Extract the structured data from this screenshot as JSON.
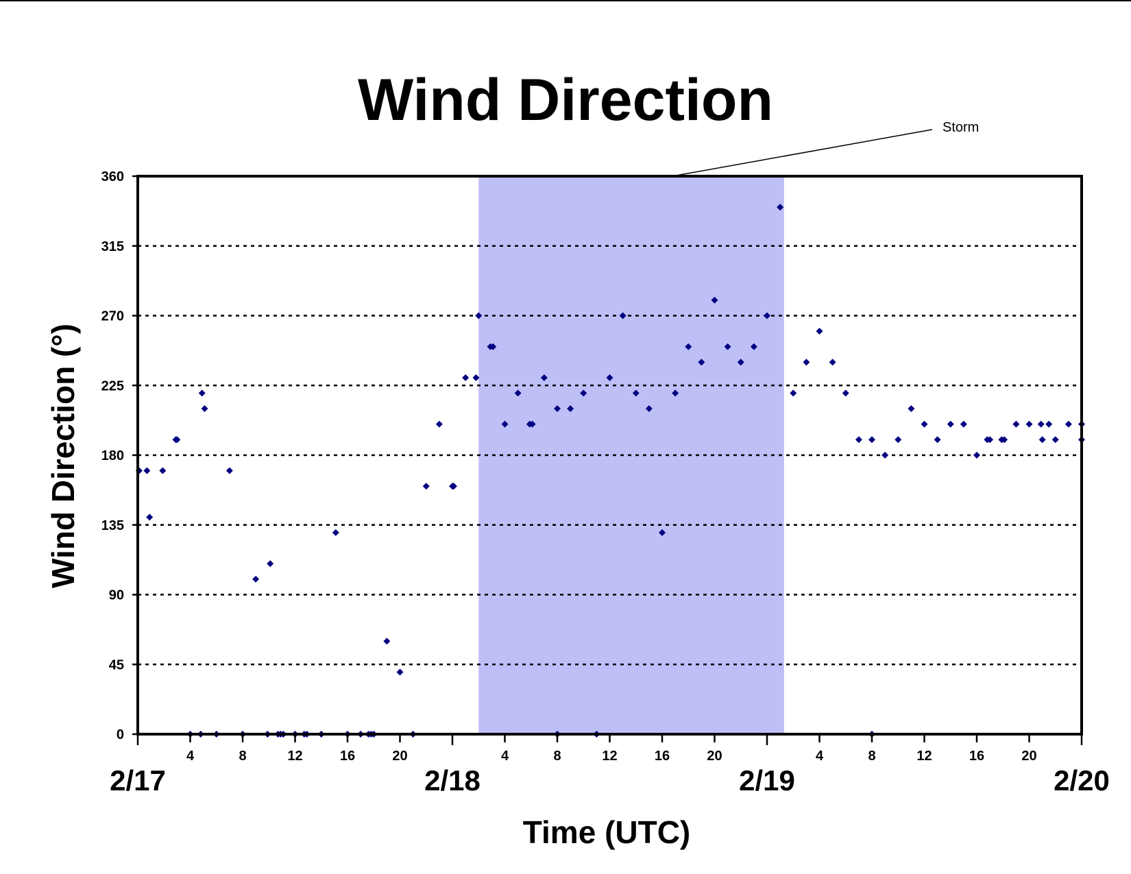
{
  "chart_data": {
    "type": "scatter",
    "title": "Wind Direction",
    "xlabel": "Time (UTC)",
    "ylabel": "Wind Direction (°)",
    "ylim": [
      0,
      360
    ],
    "yticks": [
      0,
      45,
      90,
      135,
      180,
      225,
      270,
      315,
      360
    ],
    "grid": "horizontal dotted",
    "x_units": "hours since 2/17 00:00 UTC",
    "xlim": [
      0,
      72
    ],
    "hour_ticks": [
      {
        "x": 4,
        "label": "4"
      },
      {
        "x": 8,
        "label": "8"
      },
      {
        "x": 12,
        "label": "12"
      },
      {
        "x": 16,
        "label": "16"
      },
      {
        "x": 20,
        "label": "20"
      },
      {
        "x": 28,
        "label": "4"
      },
      {
        "x": 32,
        "label": "8"
      },
      {
        "x": 36,
        "label": "12"
      },
      {
        "x": 40,
        "label": "16"
      },
      {
        "x": 44,
        "label": "20"
      },
      {
        "x": 52,
        "label": "4"
      },
      {
        "x": 56,
        "label": "8"
      },
      {
        "x": 60,
        "label": "12"
      },
      {
        "x": 64,
        "label": "16"
      },
      {
        "x": 68,
        "label": "20"
      }
    ],
    "date_labels": [
      {
        "x": 0,
        "label": "2/17"
      },
      {
        "x": 24,
        "label": "2/18"
      },
      {
        "x": 48,
        "label": "2/19"
      },
      {
        "x": 72,
        "label": "2/20"
      }
    ],
    "shaded_region": {
      "x_start": 26,
      "x_end": 49.3,
      "label": "Storm",
      "color": "#bfbff8"
    },
    "marker_color": "#000080",
    "points": [
      [
        0.1,
        170
      ],
      [
        0.7,
        170
      ],
      [
        0.9,
        140
      ],
      [
        1.9,
        170
      ],
      [
        2.9,
        190
      ],
      [
        3.0,
        190
      ],
      [
        4.0,
        0
      ],
      [
        4.8,
        0
      ],
      [
        4.9,
        220
      ],
      [
        5.1,
        210
      ],
      [
        6.0,
        0
      ],
      [
        7.0,
        170
      ],
      [
        8.0,
        0
      ],
      [
        9.0,
        100
      ],
      [
        9.9,
        0
      ],
      [
        10.1,
        110
      ],
      [
        10.7,
        0
      ],
      [
        10.9,
        0
      ],
      [
        11.1,
        0
      ],
      [
        12.0,
        0
      ],
      [
        12.7,
        0
      ],
      [
        12.9,
        0
      ],
      [
        14.0,
        0
      ],
      [
        15.1,
        130
      ],
      [
        16.0,
        0
      ],
      [
        17.0,
        0
      ],
      [
        17.6,
        0
      ],
      [
        17.8,
        0
      ],
      [
        18.0,
        0
      ],
      [
        19.0,
        60
      ],
      [
        20.0,
        40
      ],
      [
        21.0,
        0
      ],
      [
        22.0,
        160
      ],
      [
        23.0,
        200
      ],
      [
        24.0,
        160
      ],
      [
        24.1,
        160
      ],
      [
        25.0,
        230
      ],
      [
        25.8,
        230
      ],
      [
        26.0,
        270
      ],
      [
        26.9,
        250
      ],
      [
        27.1,
        250
      ],
      [
        28.0,
        200
      ],
      [
        29.0,
        220
      ],
      [
        29.9,
        200
      ],
      [
        30.1,
        200
      ],
      [
        31.0,
        230
      ],
      [
        32.0,
        210
      ],
      [
        32.0,
        0
      ],
      [
        33.0,
        210
      ],
      [
        34.0,
        220
      ],
      [
        35.0,
        0
      ],
      [
        36.0,
        230
      ],
      [
        37.0,
        270
      ],
      [
        38.0,
        220
      ],
      [
        39.0,
        210
      ],
      [
        40.0,
        130
      ],
      [
        41.0,
        220
      ],
      [
        42.0,
        250
      ],
      [
        43.0,
        240
      ],
      [
        44.0,
        280
      ],
      [
        45.0,
        250
      ],
      [
        46.0,
        240
      ],
      [
        47.0,
        250
      ],
      [
        48.0,
        270
      ],
      [
        49.0,
        340
      ],
      [
        50.0,
        220
      ],
      [
        51.0,
        240
      ],
      [
        52.0,
        260
      ],
      [
        53.0,
        240
      ],
      [
        54.0,
        220
      ],
      [
        55.0,
        190
      ],
      [
        56.0,
        190
      ],
      [
        56.0,
        0
      ],
      [
        57.0,
        180
      ],
      [
        58.0,
        190
      ],
      [
        59.0,
        210
      ],
      [
        60.0,
        200
      ],
      [
        61.0,
        190
      ],
      [
        62.0,
        200
      ],
      [
        63.0,
        200
      ],
      [
        64.0,
        180
      ],
      [
        64.8,
        190
      ],
      [
        65.0,
        190
      ],
      [
        65.9,
        190
      ],
      [
        66.1,
        190
      ],
      [
        67.0,
        200
      ],
      [
        68.0,
        200
      ],
      [
        68.9,
        200
      ],
      [
        69.0,
        190
      ],
      [
        69.5,
        200
      ],
      [
        70.0,
        190
      ],
      [
        71.0,
        200
      ],
      [
        72.0,
        200
      ],
      [
        72.0,
        190
      ]
    ]
  }
}
